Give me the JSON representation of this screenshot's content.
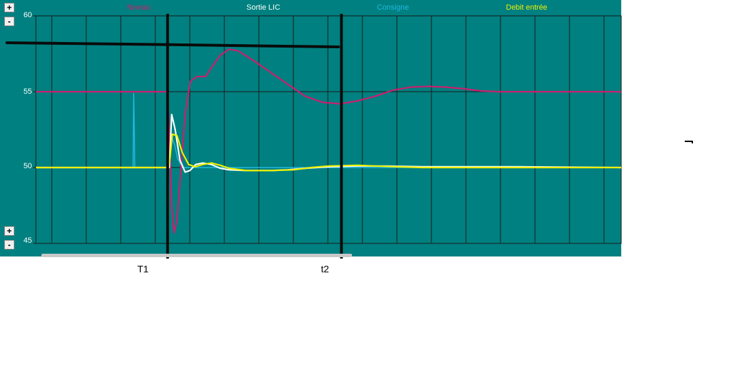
{
  "legend": {
    "niveau": {
      "label": "Niveau",
      "color": "#cc1e6e"
    },
    "sortie": {
      "label": "Sortie LIC",
      "color": "#ffffff"
    },
    "consigne": {
      "label": "Consigne",
      "color": "#22b8e0"
    },
    "debit": {
      "label": "Debit entrée",
      "color": "#f0f000"
    }
  },
  "buttons": {
    "plus": "+",
    "minus": "-"
  },
  "markers": {
    "t1": "T1",
    "t2": "t2"
  },
  "chart_data": {
    "type": "line",
    "ylim": [
      45,
      60
    ],
    "yticks": [
      "60",
      "55",
      "50",
      "45"
    ],
    "xlim": [
      0,
      100
    ],
    "grid": true,
    "background": "#008080",
    "series": [
      {
        "name": "Niveau",
        "color": "#cc1e6e",
        "points": [
          [
            0,
            55
          ],
          [
            15,
            55
          ],
          [
            15.5,
            55
          ],
          [
            16,
            55
          ],
          [
            20,
            55
          ],
          [
            22.5,
            55
          ],
          [
            22.8,
            52
          ],
          [
            23.2,
            47.5
          ],
          [
            23.6,
            45.7
          ],
          [
            24.1,
            46.5
          ],
          [
            24.8,
            50
          ],
          [
            25.5,
            53.5
          ],
          [
            26.4,
            55.7
          ],
          [
            27.6,
            56
          ],
          [
            29,
            56
          ],
          [
            30,
            56.6
          ],
          [
            31.5,
            57.4
          ],
          [
            33,
            57.8
          ],
          [
            34.5,
            57.7
          ],
          [
            37,
            57.1
          ],
          [
            40,
            56.3
          ],
          [
            43,
            55.5
          ],
          [
            46,
            54.7
          ],
          [
            49,
            54.3
          ],
          [
            52,
            54.2
          ],
          [
            55,
            54.4
          ],
          [
            58,
            54.7
          ],
          [
            61,
            55.1
          ],
          [
            64,
            55.3
          ],
          [
            67,
            55.35
          ],
          [
            70,
            55.3
          ],
          [
            73,
            55.2
          ],
          [
            76,
            55.05
          ],
          [
            79,
            55
          ],
          [
            100,
            55
          ]
        ]
      },
      {
        "name": "Sortie LIC",
        "color": "#ffffff",
        "points": [
          [
            0,
            50
          ],
          [
            22.8,
            50
          ],
          [
            23.2,
            53.5
          ],
          [
            23.8,
            52.5
          ],
          [
            24.6,
            50.5
          ],
          [
            25.5,
            49.7
          ],
          [
            26.3,
            49.8
          ],
          [
            27.3,
            50.2
          ],
          [
            28.5,
            50.3
          ],
          [
            30,
            50.2
          ],
          [
            31.5,
            49.95
          ],
          [
            33,
            49.85
          ],
          [
            36,
            49.8
          ],
          [
            40,
            49.8
          ],
          [
            43,
            49.85
          ],
          [
            46,
            49.95
          ],
          [
            50,
            50.05
          ],
          [
            55,
            50.1
          ],
          [
            60,
            50.1
          ],
          [
            66,
            50.05
          ],
          [
            75,
            50.05
          ],
          [
            82,
            50.05
          ],
          [
            100,
            50
          ]
        ]
      },
      {
        "name": "Consigne",
        "color": "#22b8e0",
        "points": [
          [
            0,
            50
          ],
          [
            16.6,
            50
          ],
          [
            16.7,
            54.9
          ],
          [
            16.8,
            52.7
          ],
          [
            16.9,
            50
          ],
          [
            22.6,
            50
          ],
          [
            22.9,
            50.5
          ],
          [
            23.2,
            52
          ],
          [
            23.7,
            51.5
          ],
          [
            24.2,
            50.6
          ],
          [
            25,
            50
          ],
          [
            100,
            50
          ]
        ]
      },
      {
        "name": "Debit entrée",
        "color": "#f0f000",
        "points": [
          [
            0,
            50
          ],
          [
            22.6,
            50
          ],
          [
            22.9,
            50.6
          ],
          [
            23.3,
            52.2
          ],
          [
            24.1,
            52.1
          ],
          [
            25,
            51
          ],
          [
            26.1,
            50.2
          ],
          [
            27.2,
            50.05
          ],
          [
            28.5,
            50.2
          ],
          [
            30,
            50.3
          ],
          [
            31.5,
            50.15
          ],
          [
            33,
            49.95
          ],
          [
            36,
            49.8
          ],
          [
            40,
            49.8
          ],
          [
            44,
            49.85
          ],
          [
            47,
            50
          ],
          [
            50,
            50.1
          ],
          [
            55,
            50.15
          ],
          [
            58,
            50.1
          ],
          [
            62,
            50.05
          ],
          [
            66,
            50
          ],
          [
            100,
            50
          ]
        ]
      }
    ],
    "annotations": [
      {
        "kind": "hline",
        "y": 58.2,
        "x_start": 0,
        "x_end": 51.7
      },
      {
        "kind": "vline",
        "label": "T1",
        "x": 22.5
      },
      {
        "kind": "vline",
        "label": "t2",
        "x": 52.2
      }
    ]
  }
}
